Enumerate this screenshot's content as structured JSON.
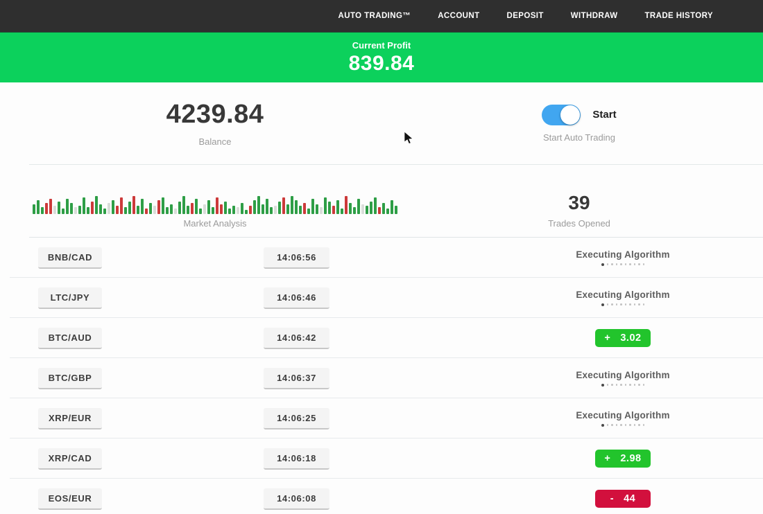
{
  "nav": {
    "items": [
      "AUTO TRADING™",
      "ACCOUNT",
      "DEPOSIT",
      "WITHDRAW",
      "TRADE HISTORY"
    ]
  },
  "profit_banner": {
    "label": "Current Profit",
    "value": "839.84",
    "bg_color": "#0cd15c"
  },
  "account": {
    "balance": "4239.84",
    "balance_label": "Balance"
  },
  "auto_trading": {
    "toggle_label": "Start",
    "caption": "Start Auto Trading",
    "toggle_on": true,
    "toggle_color": "#41a6f0"
  },
  "market": {
    "label": "Market Analysis",
    "trades_opened": "39",
    "trades_opened_label": "Trades Opened",
    "bar_colors": {
      "g": "#2e9e46",
      "r": "#cc3a3a",
      "l": "#d9ddd9"
    },
    "bars": [
      "g14",
      "g20",
      "g10",
      "r16",
      "r22",
      "l12",
      "g18",
      "g8",
      "g22",
      "g16",
      "l10",
      "g12",
      "g24",
      "g10",
      "r18",
      "g26",
      "g14",
      "g8",
      "l16",
      "g20",
      "r12",
      "r24",
      "g10",
      "g18",
      "r26",
      "g12",
      "g22",
      "r8",
      "g16",
      "l12",
      "r20",
      "g24",
      "g10",
      "g14",
      "l8",
      "g18",
      "g26",
      "g12",
      "r16",
      "g22",
      "g8",
      "l14",
      "g20",
      "g10",
      "r24",
      "r14",
      "g18",
      "g8",
      "g12",
      "l10",
      "g16",
      "g6",
      "r12",
      "g20",
      "g26",
      "g14",
      "g22",
      "g10",
      "l12",
      "g18",
      "r24",
      "g14",
      "g26",
      "g20",
      "g12",
      "r16",
      "g8",
      "g22",
      "g14",
      "l10",
      "g24",
      "g18",
      "r12",
      "g20",
      "g8",
      "r26",
      "g16",
      "g10",
      "g22",
      "l14",
      "g12",
      "g18",
      "g24",
      "r10",
      "g16",
      "g8",
      "g20",
      "g12"
    ]
  },
  "status_colors": {
    "profit": "#22c42c",
    "loss": "#d2103d"
  },
  "executing_dots": 10,
  "trades": [
    {
      "pair": "BNB/CAD",
      "time": "14:06:56",
      "status": "executing",
      "status_label": "Executing Algorithm"
    },
    {
      "pair": "LTC/JPY",
      "time": "14:06:46",
      "status": "executing",
      "status_label": "Executing Algorithm"
    },
    {
      "pair": "BTC/AUD",
      "time": "14:06:42",
      "status": "profit",
      "sign": "+",
      "value": "3.02"
    },
    {
      "pair": "BTC/GBP",
      "time": "14:06:37",
      "status": "executing",
      "status_label": "Executing Algorithm"
    },
    {
      "pair": "XRP/EUR",
      "time": "14:06:25",
      "status": "executing",
      "status_label": "Executing Algorithm"
    },
    {
      "pair": "XRP/CAD",
      "time": "14:06:18",
      "status": "profit",
      "sign": "+",
      "value": "2.98"
    },
    {
      "pair": "EOS/EUR",
      "time": "14:06:08",
      "status": "loss",
      "sign": "-",
      "value": "44"
    }
  ]
}
